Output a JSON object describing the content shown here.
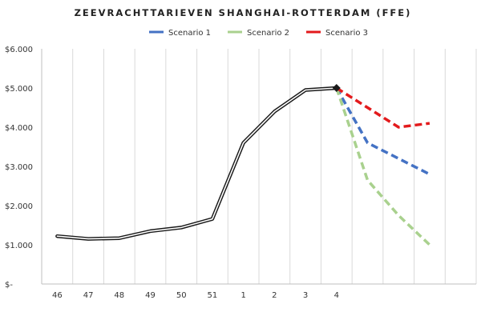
{
  "chart_data": {
    "type": "line",
    "title": "ZEEVRACHTTARIEVEN SHANGHAI-ROTTERDAM (FFE)",
    "categories": [
      "46",
      "47",
      "48",
      "49",
      "50",
      "51",
      "1",
      "2",
      "3",
      "4",
      "",
      "",
      "",
      ""
    ],
    "ylim": [
      0,
      6000
    ],
    "y_ticks": [
      "$-",
      "$1.000",
      "$2.000",
      "$3.000",
      "$4.000",
      "$5.000",
      "$6.000"
    ],
    "y_tick_values": [
      0,
      1000,
      2000,
      3000,
      4000,
      5000,
      6000
    ],
    "grid": "vertical",
    "legend_position": "top",
    "series": [
      {
        "values": [
          1220,
          1150,
          1170,
          1350,
          1440,
          1660,
          3600,
          4400,
          4950,
          5000,
          null,
          null,
          null,
          null
        ],
        "color": "#1a1a1a",
        "style": "double"
      },
      {
        "name": "Scenario 1",
        "values": [
          null,
          null,
          null,
          null,
          null,
          null,
          null,
          null,
          null,
          5000,
          3600,
          3200,
          2800,
          null
        ],
        "color": "#4472c4",
        "style": "dashed"
      },
      {
        "name": "Scenario 2",
        "values": [
          null,
          null,
          null,
          null,
          null,
          null,
          null,
          null,
          null,
          5000,
          2650,
          1750,
          1000,
          null
        ],
        "color": "#a9d18e",
        "style": "dashed"
      },
      {
        "name": "Scenario 3",
        "values": [
          null,
          null,
          null,
          null,
          null,
          null,
          null,
          null,
          null,
          5000,
          4500,
          4000,
          4100,
          null
        ],
        "color": "#e31a1c",
        "style": "dashed"
      }
    ]
  }
}
